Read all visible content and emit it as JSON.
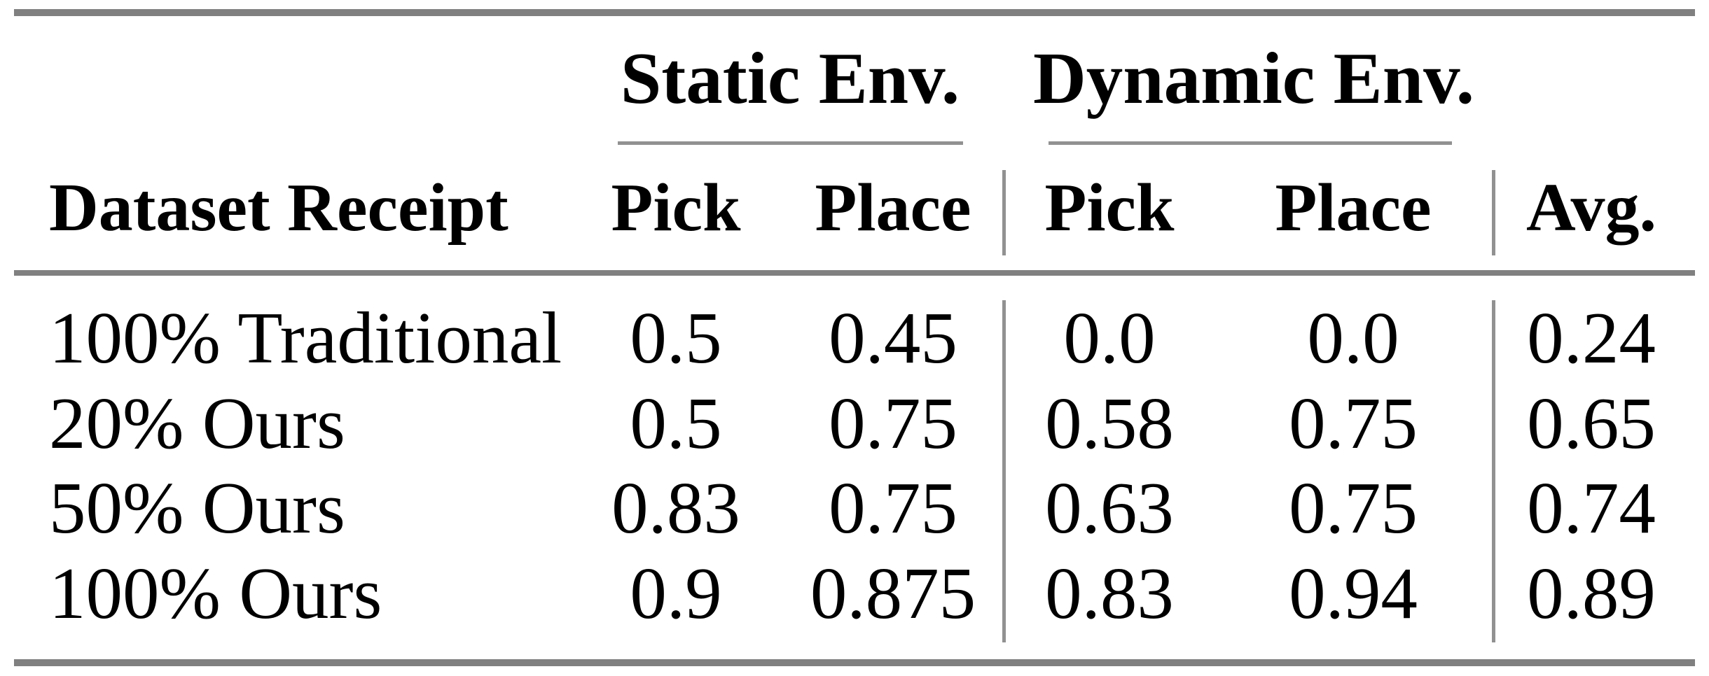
{
  "colors": {
    "background": "#ffffff",
    "text": "#000000",
    "rule_heavy": "#808080",
    "rule_light": "#919191"
  },
  "table": {
    "column_groups": {
      "static": "Static Env.",
      "dynamic": "Dynamic Env."
    },
    "columns": {
      "dataset": "Dataset Receipt",
      "static_pick": "Pick",
      "static_place": "Place",
      "dynamic_pick": "Pick",
      "dynamic_place": "Place",
      "avg": "Avg."
    },
    "rows": [
      {
        "label": "100% Traditional",
        "static_pick": "0.5",
        "static_place": "0.45",
        "dynamic_pick": "0.0",
        "dynamic_place": "0.0",
        "avg": "0.24"
      },
      {
        "label": "20% Ours",
        "static_pick": "0.5",
        "static_place": "0.75",
        "dynamic_pick": "0.58",
        "dynamic_place": "0.75",
        "avg": "0.65"
      },
      {
        "label": "50% Ours",
        "static_pick": "0.83",
        "static_place": "0.75",
        "dynamic_pick": "0.63",
        "dynamic_place": "0.75",
        "avg": "0.74"
      },
      {
        "label": "100% Ours",
        "static_pick": "0.9",
        "static_place": "0.875",
        "dynamic_pick": "0.83",
        "dynamic_place": "0.94",
        "avg": "0.89"
      }
    ]
  },
  "chart_data": {
    "type": "table",
    "title": "",
    "column_groups": [
      "Static Env.",
      "Dynamic Env."
    ],
    "columns": [
      "Dataset Receipt",
      "Static Pick",
      "Static Place",
      "Dynamic Pick",
      "Dynamic Place",
      "Avg."
    ],
    "rows": [
      [
        "100% Traditional",
        0.5,
        0.45,
        0.0,
        0.0,
        0.24
      ],
      [
        "20% Ours",
        0.5,
        0.75,
        0.58,
        0.75,
        0.65
      ],
      [
        "50% Ours",
        0.83,
        0.75,
        0.63,
        0.75,
        0.74
      ],
      [
        "100% Ours",
        0.9,
        0.875,
        0.83,
        0.94,
        0.89
      ]
    ]
  }
}
